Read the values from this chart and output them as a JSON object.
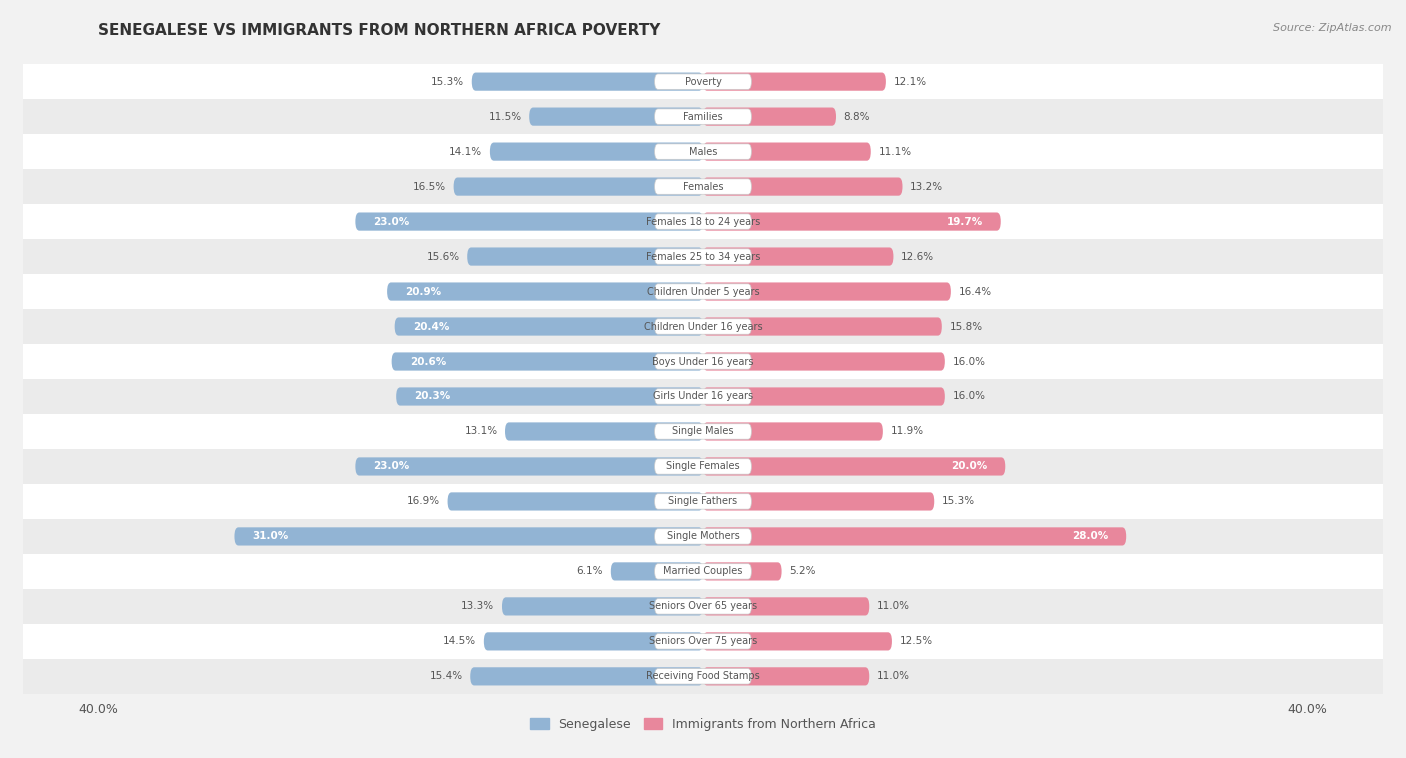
{
  "title": "SENEGALESE VS IMMIGRANTS FROM NORTHERN AFRICA POVERTY",
  "source": "Source: ZipAtlas.com",
  "categories": [
    "Poverty",
    "Families",
    "Males",
    "Females",
    "Females 18 to 24 years",
    "Females 25 to 34 years",
    "Children Under 5 years",
    "Children Under 16 years",
    "Boys Under 16 years",
    "Girls Under 16 years",
    "Single Males",
    "Single Females",
    "Single Fathers",
    "Single Mothers",
    "Married Couples",
    "Seniors Over 65 years",
    "Seniors Over 75 years",
    "Receiving Food Stamps"
  ],
  "senegalese": [
    15.3,
    11.5,
    14.1,
    16.5,
    23.0,
    15.6,
    20.9,
    20.4,
    20.6,
    20.3,
    13.1,
    23.0,
    16.9,
    31.0,
    6.1,
    13.3,
    14.5,
    15.4
  ],
  "immigrants": [
    12.1,
    8.8,
    11.1,
    13.2,
    19.7,
    12.6,
    16.4,
    15.8,
    16.0,
    16.0,
    11.9,
    20.0,
    15.3,
    28.0,
    5.2,
    11.0,
    12.5,
    11.0
  ],
  "senegalese_color": "#92b4d4",
  "immigrants_color": "#e8879c",
  "background_color": "#f2f2f2",
  "row_color_even": "#ffffff",
  "row_color_odd": "#ebebeb",
  "xlim": 40.0,
  "legend_senegalese": "Senegalese",
  "legend_immigrants": "Immigrants from Northern Africa",
  "label_inside_threshold": 18.0
}
